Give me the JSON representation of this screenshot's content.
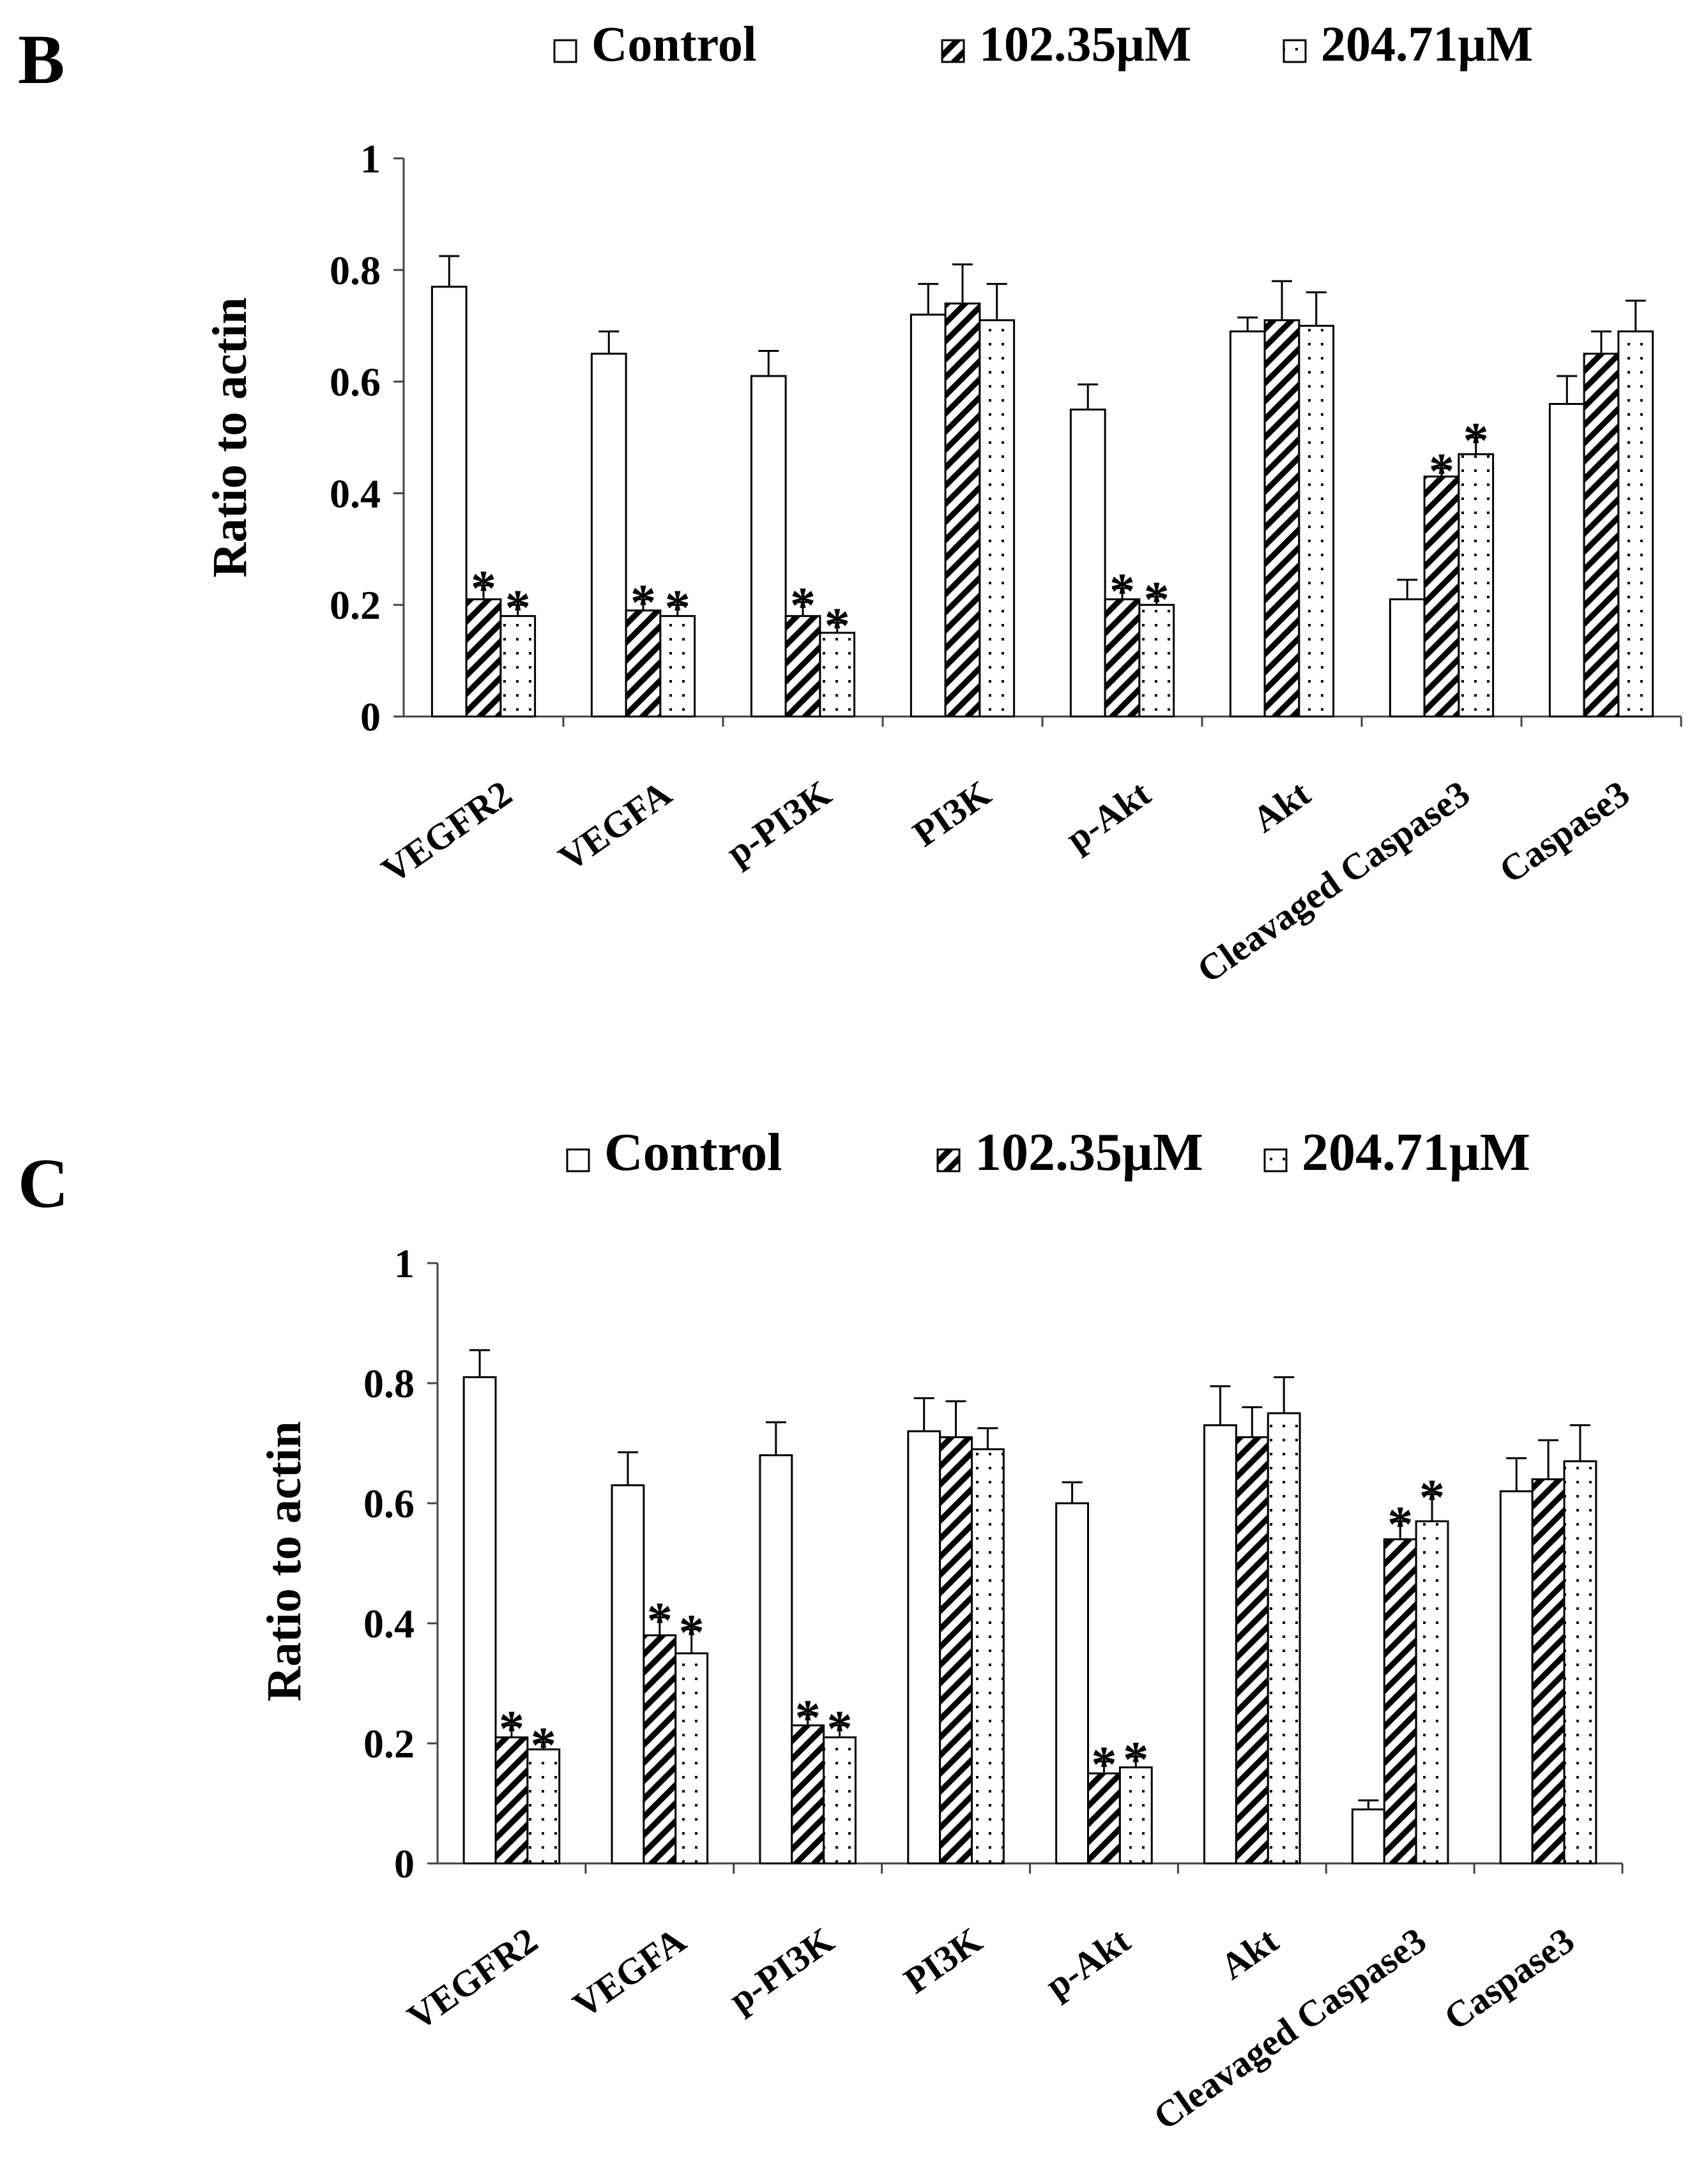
{
  "figure": {
    "legend": {
      "items": [
        {
          "label": "Control",
          "pattern": "white"
        },
        {
          "label": "102.35μM",
          "pattern": "hatch"
        },
        {
          "label": "204.71μM",
          "pattern": "dots"
        }
      ]
    }
  },
  "chart_data": [
    {
      "panel": "B",
      "type": "bar",
      "ylabel": "Ratio to actin",
      "ylim": [
        0,
        1
      ],
      "yticks": [
        "0",
        "0.2",
        "0.4",
        "0.6",
        "0.8",
        "1"
      ],
      "categories": [
        "VEGFR2",
        "VEGFA",
        "p-PI3K",
        "PI3K",
        "p-Akt",
        "Akt",
        "Cleavaged Caspase3",
        "Caspase3"
      ],
      "series": [
        {
          "name": "Control",
          "values": [
            0.77,
            0.65,
            0.61,
            0.72,
            0.55,
            0.69,
            0.21,
            0.56
          ],
          "errors": [
            0.055,
            0.04,
            0.045,
            0.055,
            0.045,
            0.025,
            0.035,
            0.05
          ]
        },
        {
          "name": "102.35μM",
          "values": [
            0.21,
            0.19,
            0.18,
            0.74,
            0.21,
            0.71,
            0.43,
            0.65
          ],
          "errors": [
            0.025,
            0.02,
            0.025,
            0.07,
            0.02,
            0.07,
            0.015,
            0.04
          ]
        },
        {
          "name": "204.71μM",
          "values": [
            0.18,
            0.18,
            0.15,
            0.71,
            0.2,
            0.7,
            0.47,
            0.69
          ],
          "errors": [
            0.02,
            0.02,
            0.018,
            0.065,
            0.015,
            0.06,
            0.03,
            0.055
          ]
        }
      ],
      "significance": [
        {
          "category": "VEGFR2",
          "series": "102.35μM",
          "mark": "*"
        },
        {
          "category": "VEGFR2",
          "series": "204.71μM",
          "mark": "*"
        },
        {
          "category": "VEGFA",
          "series": "102.35μM",
          "mark": "*"
        },
        {
          "category": "VEGFA",
          "series": "204.71μM",
          "mark": "*"
        },
        {
          "category": "p-PI3K",
          "series": "102.35μM",
          "mark": "*"
        },
        {
          "category": "p-PI3K",
          "series": "204.71μM",
          "mark": "*"
        },
        {
          "category": "p-Akt",
          "series": "102.35μM",
          "mark": "*"
        },
        {
          "category": "p-Akt",
          "series": "204.71μM",
          "mark": "*"
        },
        {
          "category": "Cleavaged Caspase3",
          "series": "102.35μM",
          "mark": "*"
        },
        {
          "category": "Cleavaged Caspase3",
          "series": "204.71μM",
          "mark": "*"
        }
      ]
    },
    {
      "panel": "C",
      "type": "bar",
      "ylabel": "Ratio to actin",
      "ylim": [
        0,
        1
      ],
      "yticks": [
        "0",
        "0.2",
        "0.4",
        "0.6",
        "0.8",
        "1"
      ],
      "categories": [
        "VEGFR2",
        "VEGFA",
        "p-PI3K",
        "PI3K",
        "p-Akt",
        "Akt",
        "Cleavaged Caspase3",
        "Caspase3"
      ],
      "series": [
        {
          "name": "Control",
          "values": [
            0.81,
            0.63,
            0.68,
            0.72,
            0.6,
            0.73,
            0.09,
            0.62
          ],
          "errors": [
            0.045,
            0.055,
            0.055,
            0.055,
            0.035,
            0.065,
            0.015,
            0.055
          ]
        },
        {
          "name": "102.35μM",
          "values": [
            0.21,
            0.38,
            0.23,
            0.71,
            0.15,
            0.71,
            0.54,
            0.64
          ],
          "errors": [
            0.02,
            0.03,
            0.018,
            0.06,
            0.02,
            0.05,
            0.03,
            0.065
          ]
        },
        {
          "name": "204.71μM",
          "values": [
            0.19,
            0.35,
            0.21,
            0.69,
            0.16,
            0.75,
            0.57,
            0.67
          ],
          "errors": [
            0.012,
            0.04,
            0.02,
            0.035,
            0.018,
            0.06,
            0.045,
            0.06
          ]
        }
      ],
      "significance": [
        {
          "category": "VEGFR2",
          "series": "102.35μM",
          "mark": "*"
        },
        {
          "category": "VEGFR2",
          "series": "204.71μM",
          "mark": "*"
        },
        {
          "category": "VEGFA",
          "series": "102.35μM",
          "mark": "*"
        },
        {
          "category": "VEGFA",
          "series": "204.71μM",
          "mark": "*"
        },
        {
          "category": "p-PI3K",
          "series": "102.35μM",
          "mark": "*"
        },
        {
          "category": "p-PI3K",
          "series": "204.71μM",
          "mark": "*"
        },
        {
          "category": "p-Akt",
          "series": "102.35μM",
          "mark": "*"
        },
        {
          "category": "p-Akt",
          "series": "204.71μM",
          "mark": "*"
        },
        {
          "category": "Cleavaged Caspase3",
          "series": "102.35μM",
          "mark": "*"
        },
        {
          "category": "Cleavaged Caspase3",
          "series": "204.71μM",
          "mark": "*"
        }
      ]
    }
  ]
}
